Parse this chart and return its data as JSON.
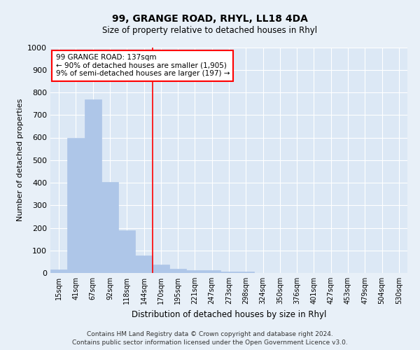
{
  "title1": "99, GRANGE ROAD, RHYL, LL18 4DA",
  "title2": "Size of property relative to detached houses in Rhyl",
  "xlabel": "Distribution of detached houses by size in Rhyl",
  "ylabel": "Number of detached properties",
  "bar_labels": [
    "15sqm",
    "41sqm",
    "67sqm",
    "92sqm",
    "118sqm",
    "144sqm",
    "170sqm",
    "195sqm",
    "221sqm",
    "247sqm",
    "273sqm",
    "298sqm",
    "324sqm",
    "350sqm",
    "376sqm",
    "401sqm",
    "427sqm",
    "453sqm",
    "479sqm",
    "504sqm",
    "530sqm"
  ],
  "bar_values": [
    15,
    600,
    770,
    403,
    190,
    77,
    38,
    18,
    12,
    12,
    7,
    5,
    0,
    0,
    0,
    0,
    0,
    0,
    0,
    0,
    0
  ],
  "bar_color": "#aec6e8",
  "bar_edgecolor": "#aec6e8",
  "vline_x": 5.5,
  "vline_color": "red",
  "ylim": [
    0,
    1000
  ],
  "yticks": [
    0,
    100,
    200,
    300,
    400,
    500,
    600,
    700,
    800,
    900,
    1000
  ],
  "annotation_title": "99 GRANGE ROAD: 137sqm",
  "annotation_line1": "← 90% of detached houses are smaller (1,905)",
  "annotation_line2": "9% of semi-detached houses are larger (197) →",
  "annotation_box_color": "red",
  "footer1": "Contains HM Land Registry data © Crown copyright and database right 2024.",
  "footer2": "Contains public sector information licensed under the Open Government Licence v3.0.",
  "bg_color": "#e8f0f8",
  "plot_bg_color": "#dce8f5"
}
